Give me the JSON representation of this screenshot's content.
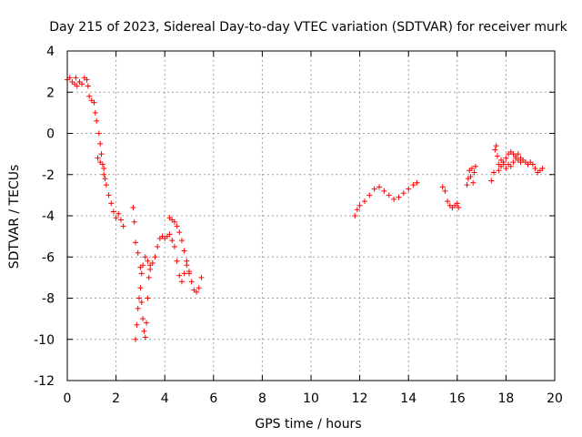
{
  "chart_data": {
    "type": "scatter",
    "title": "Day 215 of 2023, Sidereal Day-to-day VTEC variation (SDTVAR) for receiver murk",
    "xlabel": "GPS time / hours",
    "ylabel": "SDTVAR / TECUs",
    "xlim": [
      0,
      20
    ],
    "ylim": [
      -12,
      4
    ],
    "xticks": [
      0,
      2,
      4,
      6,
      8,
      10,
      12,
      14,
      16,
      18,
      20
    ],
    "yticks": [
      -12,
      -10,
      -8,
      -6,
      -4,
      -2,
      0,
      2,
      4
    ],
    "xtick_labels": [
      "0",
      "2",
      "4",
      "6",
      "8",
      "10",
      "12",
      "14",
      "16",
      "18",
      "20"
    ],
    "ytick_labels": [
      "-12",
      "-10",
      "-8",
      "-6",
      "-4",
      "-2",
      "0",
      "2",
      "4"
    ],
    "grid": true,
    "marker": "plus",
    "color": "#ff0000",
    "series": [
      {
        "name": "SDTVAR",
        "points": [
          [
            0.0,
            2.6
          ],
          [
            0.1,
            2.7
          ],
          [
            0.2,
            2.5
          ],
          [
            0.3,
            2.4
          ],
          [
            0.35,
            2.7
          ],
          [
            0.4,
            2.3
          ],
          [
            0.5,
            2.5
          ],
          [
            0.6,
            2.4
          ],
          [
            0.7,
            2.7
          ],
          [
            0.8,
            2.6
          ],
          [
            0.85,
            2.3
          ],
          [
            0.9,
            1.8
          ],
          [
            1.0,
            1.6
          ],
          [
            1.1,
            1.5
          ],
          [
            1.15,
            1.0
          ],
          [
            1.2,
            0.6
          ],
          [
            1.3,
            0.0
          ],
          [
            1.35,
            -0.5
          ],
          [
            1.4,
            -1.0
          ],
          [
            1.45,
            -1.5
          ],
          [
            1.5,
            -2.0
          ],
          [
            1.6,
            -2.5
          ],
          [
            1.7,
            -3.0
          ],
          [
            1.8,
            -3.4
          ],
          [
            1.9,
            -3.8
          ],
          [
            2.0,
            -4.1
          ],
          [
            2.1,
            -3.9
          ],
          [
            2.2,
            -4.2
          ],
          [
            2.3,
            -4.5
          ],
          [
            1.25,
            -1.2
          ],
          [
            1.35,
            -1.4
          ],
          [
            1.5,
            -1.7
          ],
          [
            1.55,
            -2.2
          ],
          [
            2.7,
            -3.6
          ],
          [
            2.75,
            -4.3
          ],
          [
            2.8,
            -5.3
          ],
          [
            2.9,
            -5.8
          ],
          [
            3.0,
            -6.5
          ],
          [
            3.05,
            -6.8
          ],
          [
            3.1,
            -6.4
          ],
          [
            3.2,
            -6.0
          ],
          [
            3.3,
            -6.2
          ],
          [
            3.4,
            -6.6
          ],
          [
            3.5,
            -6.3
          ],
          [
            3.6,
            -6.0
          ],
          [
            3.7,
            -5.5
          ],
          [
            3.8,
            -5.1
          ],
          [
            3.9,
            -5.0
          ],
          [
            4.0,
            -5.1
          ],
          [
            4.1,
            -5.0
          ],
          [
            4.2,
            -4.9
          ],
          [
            4.3,
            -5.2
          ],
          [
            4.4,
            -5.5
          ],
          [
            4.5,
            -6.2
          ],
          [
            4.6,
            -6.9
          ],
          [
            4.7,
            -7.2
          ],
          [
            4.8,
            -6.8
          ],
          [
            4.9,
            -6.4
          ],
          [
            5.0,
            -6.7
          ],
          [
            5.1,
            -7.2
          ],
          [
            5.2,
            -7.6
          ],
          [
            5.3,
            -7.7
          ],
          [
            5.4,
            -7.5
          ],
          [
            5.5,
            -7.0
          ],
          [
            2.8,
            -10.0
          ],
          [
            2.85,
            -9.3
          ],
          [
            2.9,
            -8.5
          ],
          [
            2.95,
            -8.0
          ],
          [
            3.0,
            -7.5
          ],
          [
            3.05,
            -8.2
          ],
          [
            3.1,
            -9.0
          ],
          [
            3.15,
            -9.6
          ],
          [
            3.2,
            -9.9
          ],
          [
            3.25,
            -9.2
          ],
          [
            3.3,
            -8.0
          ],
          [
            3.35,
            -7.0
          ],
          [
            3.4,
            -6.4
          ],
          [
            4.2,
            -4.1
          ],
          [
            4.3,
            -4.2
          ],
          [
            4.4,
            -4.3
          ],
          [
            4.5,
            -4.5
          ],
          [
            4.6,
            -4.8
          ],
          [
            4.7,
            -5.2
          ],
          [
            4.8,
            -5.7
          ],
          [
            4.9,
            -6.2
          ],
          [
            5.0,
            -6.8
          ],
          [
            11.8,
            -4.0
          ],
          [
            11.9,
            -3.7
          ],
          [
            12.0,
            -3.5
          ],
          [
            12.2,
            -3.3
          ],
          [
            12.4,
            -3.0
          ],
          [
            12.6,
            -2.7
          ],
          [
            12.8,
            -2.6
          ],
          [
            13.0,
            -2.8
          ],
          [
            13.2,
            -3.0
          ],
          [
            13.4,
            -3.2
          ],
          [
            13.6,
            -3.1
          ],
          [
            13.8,
            -2.9
          ],
          [
            14.0,
            -2.7
          ],
          [
            14.2,
            -2.5
          ],
          [
            14.35,
            -2.4
          ],
          [
            15.4,
            -2.6
          ],
          [
            15.5,
            -2.8
          ],
          [
            15.6,
            -3.3
          ],
          [
            15.7,
            -3.5
          ],
          [
            15.8,
            -3.6
          ],
          [
            15.9,
            -3.5
          ],
          [
            16.0,
            -3.4
          ],
          [
            16.05,
            -3.6
          ],
          [
            16.4,
            -2.5
          ],
          [
            16.45,
            -2.2
          ],
          [
            16.5,
            -1.8
          ],
          [
            16.55,
            -2.1
          ],
          [
            16.6,
            -1.7
          ],
          [
            16.65,
            -2.4
          ],
          [
            16.7,
            -1.9
          ],
          [
            16.75,
            -1.6
          ],
          [
            17.4,
            -2.3
          ],
          [
            17.5,
            -1.9
          ],
          [
            17.55,
            -0.8
          ],
          [
            17.6,
            -0.6
          ],
          [
            17.65,
            -1.1
          ],
          [
            17.7,
            -1.5
          ],
          [
            17.8,
            -1.3
          ],
          [
            17.9,
            -1.4
          ],
          [
            18.0,
            -1.2
          ],
          [
            18.1,
            -1.0
          ],
          [
            18.2,
            -0.9
          ],
          [
            18.3,
            -1.0
          ],
          [
            18.4,
            -1.2
          ],
          [
            18.5,
            -1.3
          ],
          [
            18.6,
            -1.4
          ],
          [
            18.7,
            -1.3
          ],
          [
            18.8,
            -1.4
          ],
          [
            18.9,
            -1.5
          ],
          [
            19.0,
            -1.4
          ],
          [
            19.1,
            -1.5
          ],
          [
            19.2,
            -1.7
          ],
          [
            19.3,
            -1.9
          ],
          [
            19.4,
            -1.8
          ],
          [
            19.5,
            -1.7
          ],
          [
            17.7,
            -1.8
          ],
          [
            17.8,
            -1.6
          ],
          [
            17.9,
            -1.5
          ],
          [
            18.0,
            -1.7
          ],
          [
            18.1,
            -1.5
          ],
          [
            18.2,
            -1.6
          ],
          [
            18.3,
            -1.4
          ],
          [
            18.4,
            -1.1
          ],
          [
            18.5,
            -1.0
          ],
          [
            18.6,
            -1.2
          ]
        ]
      }
    ]
  }
}
